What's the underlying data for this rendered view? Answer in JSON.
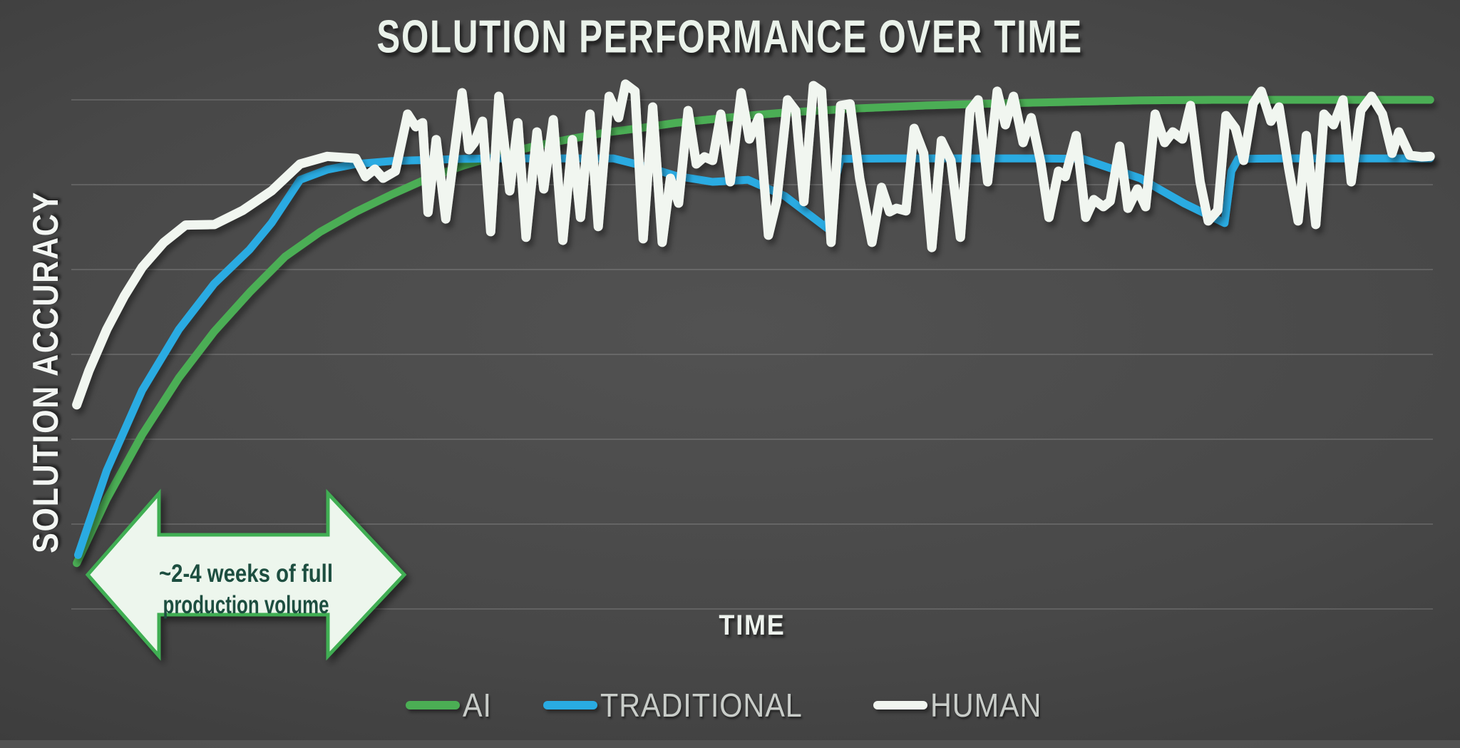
{
  "title": "SOLUTION PERFORMANCE OVER TIME",
  "colors": {
    "background_center": "#4F4F4F",
    "background_edge": "#2B2B2B",
    "ai_line": "#4BAE54",
    "traditional_line": "#29ABE2",
    "human_line": "#F1F6F0",
    "gridline": "rgba(255,255,255,0.14)",
    "title_text": "#EAF2EA",
    "legend_text": "#C9CDC9",
    "annotation_fill": "#EDF6ED",
    "annotation_border": "#3FAE53",
    "annotation_text": "#1D4E40"
  },
  "annotation": {
    "lines": [
      "~2-4 weeks of full",
      "production volume"
    ],
    "shape": "double-headed-horizontal-arrow"
  },
  "chart_data": {
    "type": "line",
    "title": "SOLUTION PERFORMANCE OVER TIME",
    "xlabel": "TIME",
    "ylabel": "SOLUTION ACCURACY",
    "x_axis": {
      "min": 0,
      "max": 100,
      "tick_labels": "none (unlabeled relative time)"
    },
    "y_axis": {
      "min": 0,
      "max": 100,
      "tick_labels": "none (unlabeled relative accuracy, 0 = bottom gridline, 100 = top gridline)"
    },
    "gridlines": {
      "horizontal_values": [
        0,
        16.67,
        33.33,
        50,
        66.67,
        83.33,
        100
      ],
      "vertical": false
    },
    "legend": {
      "position": "bottom-center",
      "entries": [
        {
          "id": "ai",
          "label": "AI",
          "color": "#4BAE54"
        },
        {
          "id": "traditional",
          "label": "TRADITIONAL",
          "color": "#29ABE2"
        },
        {
          "id": "human",
          "label": "HUMAN",
          "color": "#F1F6F0"
        }
      ]
    },
    "annotation": {
      "text_lines": [
        "~2-4 weeks of full",
        "production volume"
      ],
      "shape": "double-headed horizontal arrow under the curves' ramp-up region",
      "x_range": [
        1.2,
        24.5
      ]
    },
    "series": [
      {
        "name": "AI",
        "color": "#4BAE54",
        "description": "smooth saturating curve: slowest early learner, overtakes others and keeps improving to ~100",
        "points": [
          [
            0.4,
            9
          ],
          [
            2.6,
            21.6
          ],
          [
            5.2,
            34.2
          ],
          [
            7.9,
            45.4
          ],
          [
            10.5,
            54.5
          ],
          [
            13.1,
            62.2
          ],
          [
            15.7,
            69.2
          ],
          [
            18.3,
            74.1
          ],
          [
            20.9,
            78
          ],
          [
            23.6,
            81.5
          ],
          [
            26.2,
            84.6
          ],
          [
            28.8,
            87.1
          ],
          [
            31.4,
            89.1
          ],
          [
            34,
            90.9
          ],
          [
            36.6,
            92.3
          ],
          [
            39.3,
            93.6
          ],
          [
            41.9,
            94.5
          ],
          [
            44.5,
            95.5
          ],
          [
            47.1,
            96.2
          ],
          [
            49.7,
            96.9
          ],
          [
            52.4,
            97.5
          ],
          [
            55,
            97.9
          ],
          [
            57.6,
            98.3
          ],
          [
            62.8,
            98.9
          ],
          [
            68.1,
            99.3
          ],
          [
            73.3,
            99.6
          ],
          [
            78.5,
            99.9
          ],
          [
            83.8,
            100
          ],
          [
            89,
            100
          ],
          [
            94.2,
            100
          ],
          [
            99.8,
            100
          ]
        ]
      },
      {
        "name": "TRADITIONAL",
        "color": "#29ABE2",
        "description": "fast rise to ~88.5 plateau with two slow degradations and sharp recoveries",
        "points": [
          [
            0.5,
            10.6
          ],
          [
            2.6,
            27.2
          ],
          [
            5.2,
            42.9
          ],
          [
            7.9,
            54.9
          ],
          [
            10.5,
            63.9
          ],
          [
            13.1,
            70.6
          ],
          [
            14.7,
            75.8
          ],
          [
            16.8,
            84.3
          ],
          [
            18.8,
            86.3
          ],
          [
            20.9,
            87.4
          ],
          [
            23.6,
            88
          ],
          [
            26.2,
            88.2
          ],
          [
            28.8,
            88.4
          ],
          [
            31.4,
            88.5
          ],
          [
            39.8,
            88.5
          ],
          [
            41.9,
            87.1
          ],
          [
            44.5,
            85
          ],
          [
            47.1,
            83.9
          ],
          [
            49.7,
            84.3
          ],
          [
            52.4,
            81.1
          ],
          [
            55.5,
            74.8
          ],
          [
            56.2,
            85.3
          ],
          [
            56.5,
            88.4
          ],
          [
            60.2,
            88.5
          ],
          [
            70.7,
            88.5
          ],
          [
            74.3,
            88.4
          ],
          [
            78.5,
            84.6
          ],
          [
            81.7,
            79.7
          ],
          [
            84.7,
            75.8
          ],
          [
            85.2,
            86
          ],
          [
            85.7,
            88.4
          ],
          [
            89,
            88.5
          ],
          [
            94.2,
            88.5
          ],
          [
            99.8,
            88.5
          ]
        ]
      },
      {
        "name": "HUMAN",
        "color": "#F1F6F0",
        "description": "fastest initial rise, then noisy/inconsistent oscillation around ~88 for the rest of time",
        "points": [
          [
            0.4,
            40.1
          ],
          [
            1.3,
            46.8
          ],
          [
            2.6,
            54.9
          ],
          [
            3.9,
            61.5
          ],
          [
            5.2,
            67.1
          ],
          [
            6.8,
            72
          ],
          [
            8.4,
            75.4
          ],
          [
            10.5,
            75.5
          ],
          [
            12.6,
            78.3
          ],
          [
            14.7,
            82.1
          ],
          [
            16.8,
            87.4
          ],
          [
            18.8,
            88.9
          ],
          [
            20.9,
            88.5
          ],
          [
            21.6,
            84.9
          ],
          [
            22.3,
            86.4
          ],
          [
            22.9,
            84.6
          ],
          [
            23.8,
            86
          ],
          [
            24.7,
            97.2
          ],
          [
            25.3,
            94.7
          ],
          [
            25.8,
            95.5
          ],
          [
            26.2,
            77.9
          ],
          [
            26.8,
            92.2
          ],
          [
            27.5,
            76.6
          ],
          [
            28.7,
            101.4
          ],
          [
            29.2,
            90.2
          ],
          [
            29.6,
            91.6
          ],
          [
            30.2,
            95.8
          ],
          [
            30.8,
            74.1
          ],
          [
            31.4,
            100.7
          ],
          [
            32.2,
            82.1
          ],
          [
            32.8,
            95.5
          ],
          [
            33.4,
            73
          ],
          [
            34.2,
            93.7
          ],
          [
            34.7,
            82.5
          ],
          [
            35.4,
            96.1
          ],
          [
            36.1,
            72.4
          ],
          [
            36.8,
            92.2
          ],
          [
            37.4,
            76.9
          ],
          [
            38.1,
            97.2
          ],
          [
            38.7,
            75.1
          ],
          [
            39.5,
            100.7
          ],
          [
            40.2,
            96.5
          ],
          [
            40.7,
            103.1
          ],
          [
            41.4,
            101.7
          ],
          [
            42,
            72.7
          ],
          [
            42.7,
            98.6
          ],
          [
            43.4,
            72
          ],
          [
            44,
            84.6
          ],
          [
            44.6,
            79.7
          ],
          [
            45.3,
            97.9
          ],
          [
            45.9,
            87.4
          ],
          [
            46.5,
            88.8
          ],
          [
            47.1,
            88.1
          ],
          [
            47.7,
            97.2
          ],
          [
            48.4,
            83.9
          ],
          [
            49.2,
            101.4
          ],
          [
            49.8,
            92.3
          ],
          [
            50.5,
            96.5
          ],
          [
            51.2,
            73.4
          ],
          [
            51.8,
            80
          ],
          [
            52.6,
            100
          ],
          [
            53.2,
            97.9
          ],
          [
            53.8,
            80
          ],
          [
            54.5,
            102.8
          ],
          [
            55.1,
            101.7
          ],
          [
            55.8,
            72
          ],
          [
            56.5,
            98.9
          ],
          [
            57.2,
            99.2
          ],
          [
            57.9,
            84.6
          ],
          [
            58.8,
            72
          ],
          [
            59.5,
            82.8
          ],
          [
            60.1,
            78
          ],
          [
            60.6,
            78.7
          ],
          [
            61.3,
            78.2
          ],
          [
            61.9,
            94.4
          ],
          [
            62.6,
            89.5
          ],
          [
            63.2,
            71
          ],
          [
            63.9,
            92
          ],
          [
            64.6,
            88.1
          ],
          [
            65.3,
            73
          ],
          [
            66,
            97.9
          ],
          [
            66.6,
            100
          ],
          [
            67.3,
            83.9
          ],
          [
            68,
            101.7
          ],
          [
            68.6,
            95.1
          ],
          [
            69.2,
            100.7
          ],
          [
            69.9,
            91.6
          ],
          [
            70.5,
            96.5
          ],
          [
            71.2,
            87.7
          ],
          [
            71.8,
            76.9
          ],
          [
            72.5,
            86
          ],
          [
            73,
            84.9
          ],
          [
            73.8,
            93
          ],
          [
            74.5,
            76.9
          ],
          [
            75.1,
            80.4
          ],
          [
            75.8,
            79
          ],
          [
            76.3,
            80.1
          ],
          [
            77,
            90.9
          ],
          [
            77.6,
            78.7
          ],
          [
            78.3,
            82.5
          ],
          [
            78.9,
            79
          ],
          [
            79.6,
            97.2
          ],
          [
            80.3,
            91.6
          ],
          [
            80.9,
            93.7
          ],
          [
            81.6,
            92.3
          ],
          [
            82.2,
            98.9
          ],
          [
            82.9,
            83.9
          ],
          [
            83.5,
            76.2
          ],
          [
            84.2,
            78.3
          ],
          [
            84.8,
            96.9
          ],
          [
            85.5,
            94.4
          ],
          [
            86.1,
            88.1
          ],
          [
            86.8,
            99.3
          ],
          [
            87.4,
            101.7
          ],
          [
            88.1,
            95.8
          ],
          [
            88.7,
            98.6
          ],
          [
            89.4,
            86.7
          ],
          [
            90.1,
            76.2
          ],
          [
            90.7,
            93
          ],
          [
            91.4,
            75.5
          ],
          [
            92,
            97.2
          ],
          [
            92.7,
            95.1
          ],
          [
            93.4,
            100
          ],
          [
            94,
            83.9
          ],
          [
            94.7,
            97.9
          ],
          [
            95.5,
            100.7
          ],
          [
            96.3,
            97.2
          ],
          [
            97,
            89.5
          ],
          [
            97.5,
            93.7
          ],
          [
            98.3,
            89.1
          ],
          [
            99.2,
            88.8
          ],
          [
            99.8,
            88.9
          ]
        ]
      }
    ]
  }
}
